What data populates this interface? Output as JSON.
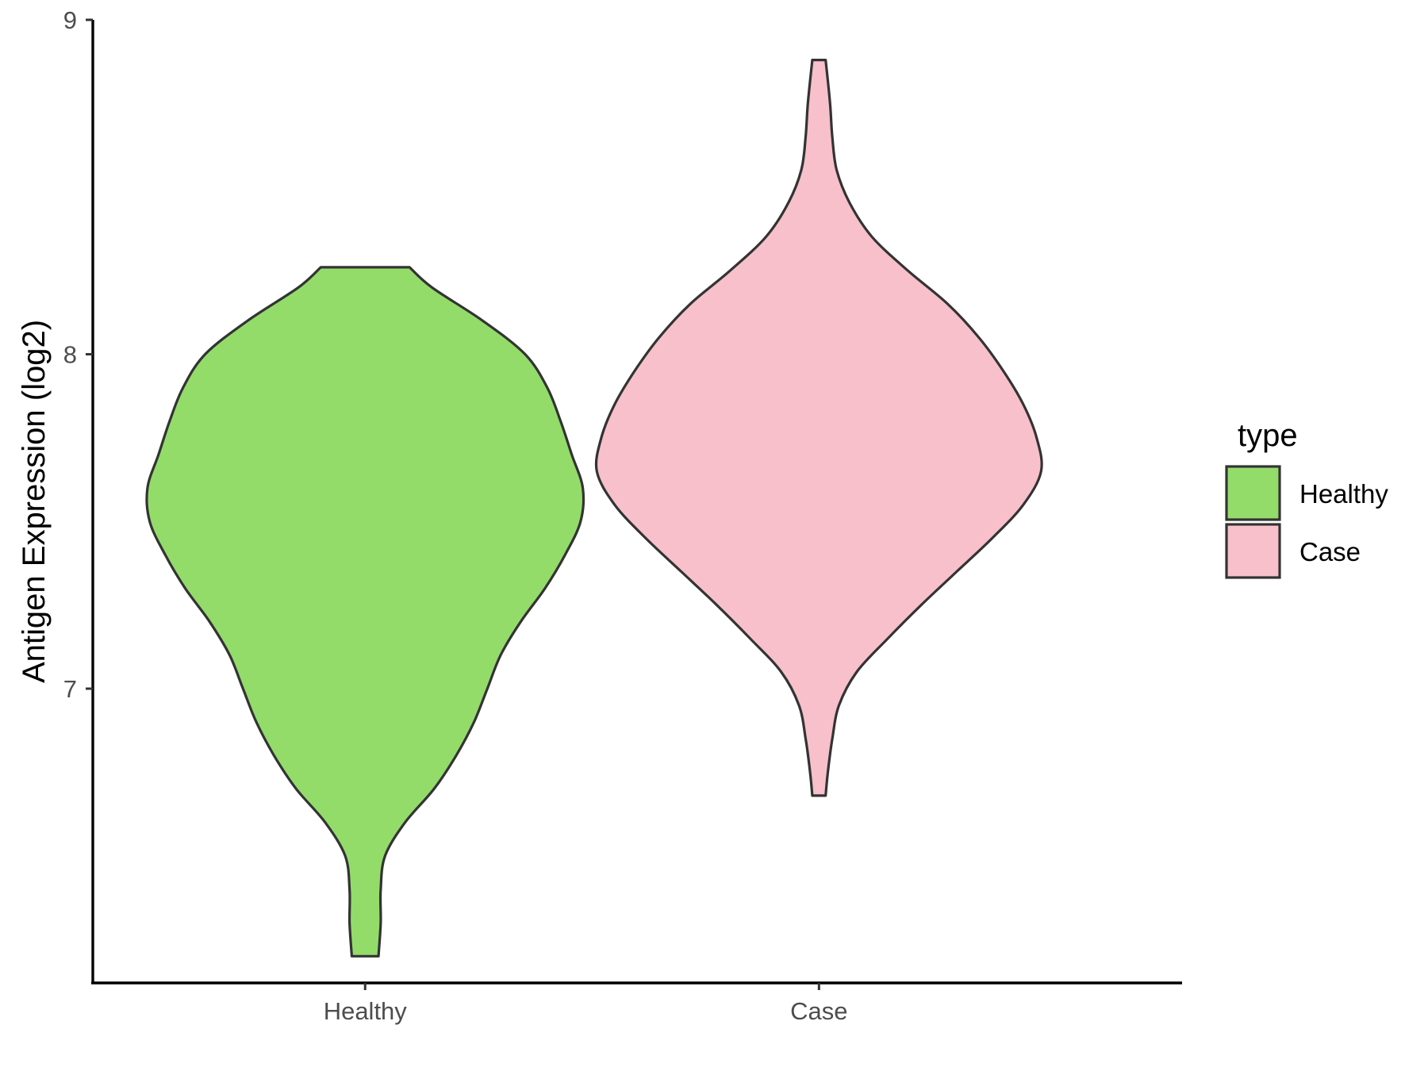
{
  "chart_data": {
    "type": "violin",
    "xlabel": "",
    "ylabel": "Antigen Expression (log2)",
    "ylim": [
      6.12,
      9.0
    ],
    "yticks": [
      "7",
      "8",
      "9"
    ],
    "categories": [
      "Healthy",
      "Case"
    ],
    "grid": false,
    "legend": {
      "title": "type",
      "placement": "right",
      "entries": [
        "Healthy",
        "Case"
      ]
    },
    "series": [
      {
        "name": "Healthy",
        "color": "#93dc6a",
        "min": 6.2,
        "max": 8.26,
        "density": [
          [
            6.2,
            0.06
          ],
          [
            6.3,
            0.07
          ],
          [
            6.4,
            0.07
          ],
          [
            6.5,
            0.09
          ],
          [
            6.6,
            0.18
          ],
          [
            6.7,
            0.31
          ],
          [
            6.8,
            0.41
          ],
          [
            6.9,
            0.49
          ],
          [
            7.0,
            0.55
          ],
          [
            7.1,
            0.61
          ],
          [
            7.2,
            0.7
          ],
          [
            7.3,
            0.81
          ],
          [
            7.4,
            0.9
          ],
          [
            7.5,
            0.97
          ],
          [
            7.6,
            0.98
          ],
          [
            7.7,
            0.93
          ],
          [
            7.8,
            0.88
          ],
          [
            7.9,
            0.82
          ],
          [
            8.0,
            0.72
          ],
          [
            8.1,
            0.53
          ],
          [
            8.2,
            0.3
          ],
          [
            8.26,
            0.2
          ]
        ]
      },
      {
        "name": "Case",
        "color": "#f7c0cb",
        "min": 6.68,
        "max": 8.88,
        "density": [
          [
            6.68,
            0.03
          ],
          [
            6.75,
            0.04
          ],
          [
            6.85,
            0.06
          ],
          [
            6.95,
            0.09
          ],
          [
            7.05,
            0.17
          ],
          [
            7.15,
            0.31
          ],
          [
            7.25,
            0.46
          ],
          [
            7.35,
            0.62
          ],
          [
            7.45,
            0.78
          ],
          [
            7.55,
            0.92
          ],
          [
            7.65,
            1.0
          ],
          [
            7.75,
            0.98
          ],
          [
            7.85,
            0.92
          ],
          [
            7.95,
            0.83
          ],
          [
            8.05,
            0.72
          ],
          [
            8.15,
            0.58
          ],
          [
            8.25,
            0.4
          ],
          [
            8.35,
            0.24
          ],
          [
            8.45,
            0.14
          ],
          [
            8.55,
            0.08
          ],
          [
            8.65,
            0.06
          ],
          [
            8.75,
            0.05
          ],
          [
            8.88,
            0.03
          ]
        ]
      }
    ]
  }
}
